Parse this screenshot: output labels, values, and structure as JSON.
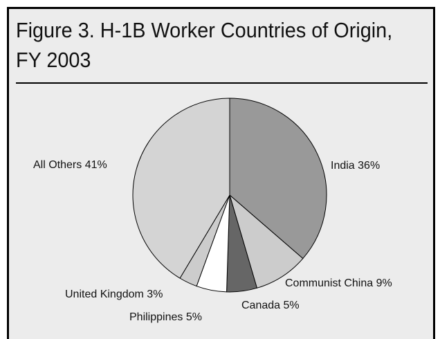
{
  "title": "Figure 3. H-1B Worker Countries of Origin, FY 2003",
  "chart_data": {
    "type": "pie",
    "title": "Figure 3. H-1B Worker Countries of Origin, FY 2003",
    "start_angle_deg": 0,
    "direction": "clockwise",
    "slices": [
      {
        "key": "india",
        "label": "India 36%",
        "value": 36,
        "color": "#999999"
      },
      {
        "key": "communist-china",
        "label": "Communist China  9%",
        "value": 9,
        "color": "#cccccc"
      },
      {
        "key": "canada",
        "label": "Canada 5%",
        "value": 5,
        "color": "#666666"
      },
      {
        "key": "philippines",
        "label": "Philippines 5%",
        "value": 5,
        "color": "#ffffff"
      },
      {
        "key": "united-kingdom",
        "label": "United Kingdom  3%",
        "value": 3,
        "color": "#cccccc"
      },
      {
        "key": "all-others",
        "label": "All Others 41%",
        "value": 41,
        "color": "#d4d4d4"
      }
    ]
  }
}
